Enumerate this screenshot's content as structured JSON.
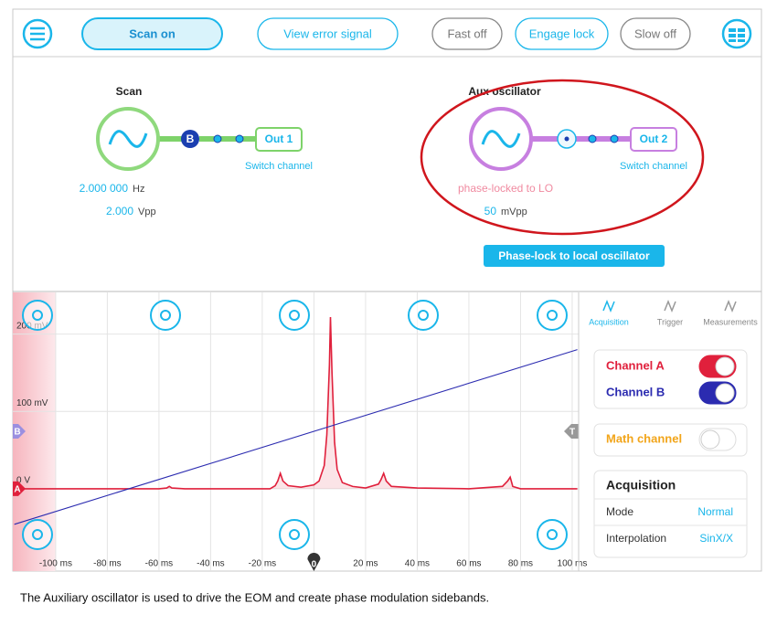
{
  "toolbar": {
    "buttons": [
      {
        "label": "Scan on",
        "active": true
      },
      {
        "label": "View error signal",
        "active": false
      },
      {
        "label": "Fast off",
        "active": false
      },
      {
        "label": "Engage lock",
        "active": false
      },
      {
        "label": "Slow off",
        "active": false
      }
    ]
  },
  "scan": {
    "title": "Scan",
    "badge": "B",
    "output": "Out 1",
    "switch": "Switch channel",
    "frequency": "2.000 000",
    "frequency_unit": "Hz",
    "amplitude": "2.000",
    "amplitude_unit": "Vpp"
  },
  "aux": {
    "title": "Aux oscillator",
    "output": "Out 2",
    "switch": "Switch channel",
    "status": "phase-locked to LO",
    "amplitude": "50",
    "amplitude_unit": "mVpp",
    "button": "Phase-lock to local oscillator"
  },
  "scope": {
    "xlim": [
      -116.6,
      102.5
    ],
    "ylim": [
      -106.5,
      254
    ],
    "xticks": [
      {
        "value": -100,
        "label": "-100 ms"
      },
      {
        "value": -80,
        "label": "-80 ms"
      },
      {
        "value": -60,
        "label": "-60 ms"
      },
      {
        "value": -40,
        "label": "-40 ms"
      },
      {
        "value": -20,
        "label": "-20 ms"
      },
      0,
      {
        "value": 20,
        "label": "20 ms"
      },
      {
        "value": 40,
        "label": "40 ms"
      },
      {
        "value": 60,
        "label": "60 ms"
      },
      {
        "value": 80,
        "label": "80 ms"
      },
      {
        "value": 100,
        "label": "100 ms"
      }
    ],
    "yticks": [
      {
        "value": 0,
        "label": "0 V"
      },
      {
        "value": 100,
        "label": "100 mV"
      },
      {
        "value": 200,
        "label": "200 mV"
      }
    ],
    "trigger_marker": "T",
    "traces": [
      {
        "marker": "A",
        "color": "#e0203c",
        "x": [
          -116,
          -100,
          -80,
          -60,
          -57,
          -56,
          -55,
          -50,
          -30,
          -17,
          -15,
          -14,
          -13,
          -12,
          -10,
          -5,
          0,
          2,
          4,
          5,
          6,
          6.4,
          7,
          8,
          9,
          11,
          15,
          20,
          25,
          26,
          27,
          28,
          30,
          40,
          60,
          73,
          75,
          76,
          77,
          80,
          95,
          102
        ],
        "values": [
          0,
          0,
          0,
          0,
          1,
          3,
          1,
          0,
          0,
          0,
          4,
          10,
          20,
          10,
          4,
          2,
          5,
          10,
          30,
          70,
          160,
          222,
          150,
          60,
          25,
          8,
          3,
          1,
          6,
          12,
          20,
          10,
          3,
          1,
          0,
          3,
          10,
          15,
          3,
          0,
          0,
          0
        ]
      },
      {
        "marker": "B",
        "color": "#2b2bb0",
        "x": [
          -116,
          102
        ],
        "values": [
          -46,
          180
        ]
      }
    ]
  },
  "sidebar": {
    "tabs": [
      "Acquisition",
      "Trigger",
      "Measurements"
    ],
    "channels": [
      {
        "label": "Channel A",
        "on": true,
        "color": "#e0203c"
      },
      {
        "label": "Channel B",
        "on": true,
        "color": "#2b2bb0"
      }
    ],
    "math": {
      "label": "Math channel",
      "on": false,
      "color": "#f2a51a"
    },
    "acquisition": {
      "title": "Acquisition",
      "rows": [
        [
          "Mode",
          "Normal"
        ],
        [
          "Interpolation",
          "SinX/X"
        ]
      ]
    }
  },
  "caption": "The Auxiliary oscillator is used to drive the EOM and create phase modulation sidebands."
}
